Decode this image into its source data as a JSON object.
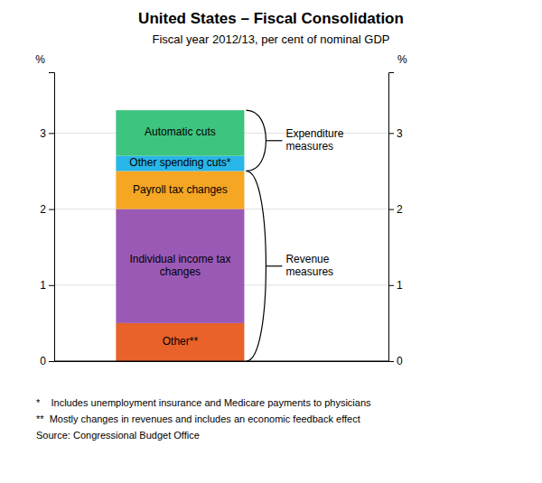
{
  "chart_data": {
    "type": "bar",
    "stacked": true,
    "grid": true,
    "title": "United States – Fiscal Consolidation",
    "subtitle": "Fiscal year 2012/13, per cent of nominal GDP",
    "categories": [
      null
    ],
    "series": [
      {
        "name": "Other**",
        "color": "#E8622A",
        "values": [
          0.5
        ]
      },
      {
        "name": "Individual income tax\nchanges",
        "color": "#9B59B6",
        "values": [
          1.5
        ]
      },
      {
        "name": "Payroll tax changes",
        "color": "#F5A623",
        "values": [
          0.5
        ]
      },
      {
        "name": "Other spending cuts*",
        "color": "#29B6E8",
        "values": [
          0.2
        ]
      },
      {
        "name": "Automatic cuts",
        "color": "#3DC47E",
        "values": [
          0.6
        ]
      }
    ],
    "ylim": [
      0,
      3.8
    ],
    "yticks": [
      0,
      1,
      2,
      3
    ],
    "y_label": "%",
    "y2lim": [
      0,
      3.8
    ],
    "y2ticks": [
      0,
      1,
      2,
      3
    ],
    "y2_label": "%",
    "annotations": [
      {
        "label": "Expenditure\nmeasures",
        "y_bottom": 2.5,
        "y_top": 3.3
      },
      {
        "label": "Revenue\nmeasures",
        "y_bottom": 0.0,
        "y_top": 2.5
      }
    ],
    "footnotes": [
      "*    Includes unemployment insurance and Medicare payments to physicians",
      "**  Mostly changes in revenues and includes an economic feedback effect",
      "Source: Congressional Budget Office"
    ]
  }
}
